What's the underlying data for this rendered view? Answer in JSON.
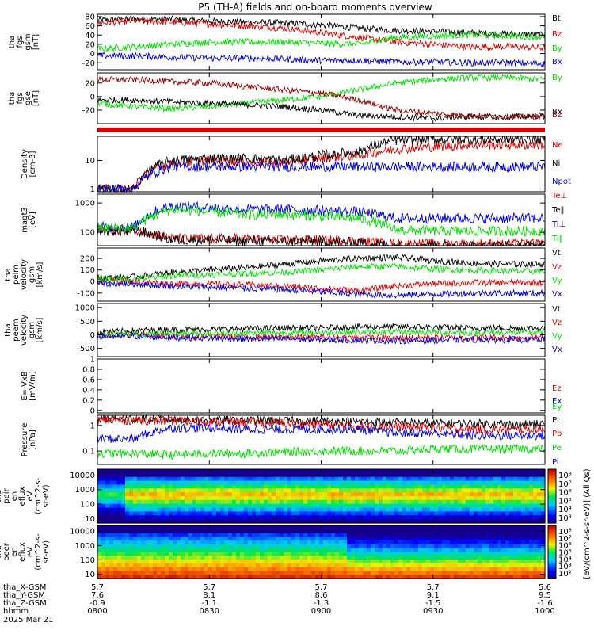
{
  "chart_data": {
    "type": "line",
    "title": "P5 (TH-A) fields and on-board moments overview",
    "date": "2025 Mar 21",
    "x_axis": {
      "tick_labels": [
        "0800",
        "0830",
        "0900",
        "0930",
        "1000"
      ],
      "range_minutes": [
        0,
        120
      ],
      "ephemeris_rows": [
        {
          "label": "tha_X-GSM",
          "values": [
            "5.7",
            "5.7",
            "5.7",
            "5.7",
            "5.6"
          ]
        },
        {
          "label": "tha_Y-GSM",
          "values": [
            "7.6",
            "8.1",
            "8.6",
            "9.1",
            "9.5"
          ]
        },
        {
          "label": "tha_Z-GSM",
          "values": [
            "-0.9",
            "-1.1",
            "-1.3",
            "-1.5",
            "-1.6"
          ]
        },
        {
          "label": "hhmm",
          "values": []
        }
      ]
    },
    "panels": [
      {
        "id": "fgs_gsm",
        "ylabel": [
          "tha",
          "fgs",
          "gsm",
          "[nT]"
        ],
        "scale": "linear",
        "ylim": [
          -35,
          85
        ],
        "yticks": [
          80,
          60,
          40,
          20,
          0,
          -20
        ],
        "series": [
          {
            "name": "Bt",
            "color": "#000000",
            "values": [
              72,
              75,
              74,
              70,
              68,
              66,
              62,
              55,
              50,
              48,
              45,
              42,
              40
            ]
          },
          {
            "name": "Bz",
            "color": "#dd0000",
            "values": [
              66,
              70,
              68,
              64,
              60,
              55,
              45,
              35,
              25,
              20,
              14,
              15,
              12
            ]
          },
          {
            "name": "By",
            "color": "#00dd00",
            "values": [
              10,
              15,
              20,
              25,
              25,
              25,
              22,
              20,
              35,
              38,
              40,
              38,
              35
            ]
          },
          {
            "name": "Bx",
            "color": "#0000dd",
            "values": [
              -5,
              -5,
              -8,
              -10,
              -10,
              -12,
              -15,
              -15,
              -18,
              -18,
              -20,
              -20,
              -22
            ]
          }
        ]
      },
      {
        "id": "fgs_gse",
        "ylabel": [
          "tha",
          "fgs",
          "gse",
          "[nT]"
        ],
        "scale": "linear",
        "ylim": [
          -40,
          35
        ],
        "yticks": [
          20,
          0,
          -20
        ],
        "series": [
          {
            "name": "By",
            "color": "#00dd00",
            "values": [
              -10,
              -15,
              -18,
              -15,
              -10,
              -5,
              0,
              10,
              20,
              25,
              28,
              28,
              25
            ]
          },
          {
            "name": "Bx",
            "color": "#000000",
            "values": [
              -5,
              -5,
              -8,
              -10,
              -12,
              -15,
              -20,
              -28,
              -30,
              -32,
              -30,
              -30,
              -28
            ]
          },
          {
            "name": "Bz",
            "color": "#990000",
            "values": [
              25,
              25,
              22,
              20,
              15,
              10,
              5,
              -5,
              -20,
              -25,
              -28,
              -30,
              -30
            ]
          }
        ]
      },
      {
        "id": "density",
        "ylabel": [
          "Density",
          "[cm-3]"
        ],
        "scale": "log",
        "ylim": [
          0.8,
          70
        ],
        "yticks": [
          10,
          1
        ],
        "series": [
          {
            "name": "Ne",
            "color": "#dd0000",
            "values": [
              1,
              1,
              8,
              10,
              9,
              8,
              12,
              15,
              25,
              30,
              35,
              35,
              35
            ]
          },
          {
            "name": "Ni",
            "color": "#000000",
            "values": [
              1,
              1,
              10,
              12,
              12,
              10,
              15,
              20,
              50,
              55,
              55,
              55,
              55
            ]
          },
          {
            "name": "Npot",
            "color": "#0000dd",
            "values": [
              1,
              1,
              6,
              6,
              6,
              6,
              6,
              6,
              6,
              6,
              6,
              6,
              6
            ]
          }
        ]
      },
      {
        "id": "temperature",
        "ylabel": [
          "magt3",
          "[eV]"
        ],
        "scale": "log",
        "ylim": [
          35,
          2000
        ],
        "yticks": [
          1000,
          100
        ],
        "series": [
          {
            "name": "Te⊥",
            "color": "#dd0000",
            "values": [
              120,
              120,
              60,
              60,
              60,
              55,
              55,
              50,
              40,
              40,
              40,
              40,
              40
            ]
          },
          {
            "name": "Te‖",
            "color": "#000000",
            "values": [
              110,
              110,
              55,
              55,
              50,
              50,
              48,
              45,
              35,
              35,
              35,
              35,
              35
            ]
          },
          {
            "name": "Ti⊥",
            "color": "#0000dd",
            "values": [
              150,
              150,
              800,
              700,
              600,
              600,
              550,
              500,
              300,
              300,
              300,
              300,
              300
            ]
          },
          {
            "name": "Ti‖",
            "color": "#00dd00",
            "values": [
              140,
              140,
              600,
              500,
              400,
              400,
              350,
              300,
              120,
              110,
              110,
              110,
              110
            ]
          }
        ]
      },
      {
        "id": "peim_velocity",
        "ylabel": [
          "tha",
          "peim",
          "velocity",
          "gsm",
          "[km/s]"
        ],
        "scale": "linear",
        "ylim": [
          -170,
          290
        ],
        "yticks": [
          200,
          100,
          0,
          -100
        ],
        "series": [
          {
            "name": "Vt",
            "color": "#000000",
            "values": [
              30,
              40,
              80,
              100,
              120,
              150,
              180,
              200,
              210,
              180,
              160,
              150,
              150
            ]
          },
          {
            "name": "Vz",
            "color": "#dd0000",
            "values": [
              10,
              0,
              -20,
              -20,
              -30,
              -40,
              -60,
              -80,
              -40,
              -20,
              -10,
              -10,
              -10
            ]
          },
          {
            "name": "Vy",
            "color": "#00dd00",
            "values": [
              20,
              20,
              50,
              60,
              70,
              80,
              100,
              130,
              130,
              110,
              100,
              90,
              90
            ]
          },
          {
            "name": "Vx",
            "color": "#0000dd",
            "values": [
              -20,
              -20,
              -40,
              -50,
              -60,
              -70,
              -90,
              -110,
              -120,
              -110,
              -100,
              -100,
              -100
            ]
          }
        ]
      },
      {
        "id": "peem_velocity",
        "ylabel": [
          "tha",
          "peem",
          "velocity",
          "gsm",
          "[km/s]"
        ],
        "scale": "linear",
        "ylim": [
          -800,
          1150
        ],
        "yticks": [
          1000,
          500,
          0,
          -500
        ],
        "series": [
          {
            "name": "Vt",
            "color": "#000000",
            "values": [
              100,
              150,
              200,
              200,
              220,
              250,
              250,
              300,
              300,
              280,
              250,
              250,
              250
            ]
          },
          {
            "name": "Vz",
            "color": "#dd0000",
            "values": [
              0,
              0,
              -50,
              -50,
              -80,
              -80,
              -100,
              -100,
              -120,
              -100,
              -100,
              -100,
              -100
            ]
          },
          {
            "name": "Vy",
            "color": "#00dd00",
            "values": [
              0,
              20,
              50,
              50,
              60,
              70,
              80,
              100,
              100,
              90,
              80,
              80,
              80
            ]
          },
          {
            "name": "Vx",
            "color": "#0000dd",
            "values": [
              -50,
              -50,
              -100,
              -120,
              -150,
              -150,
              -180,
              -200,
              -220,
              -200,
              -180,
              -180,
              -180
            ]
          }
        ]
      },
      {
        "id": "efield",
        "ylabel": [
          "E=-VxB",
          "[mV/m]"
        ],
        "scale": "linear",
        "ylim": [
          -0.05,
          1.0
        ],
        "yticks": [
          1.0,
          0.8,
          0.6,
          0.4,
          0.2,
          0.0
        ],
        "series": [
          {
            "name": "Ez",
            "color": "#dd0000",
            "values": []
          },
          {
            "name": "Ey",
            "color": "#00dd00",
            "values": []
          },
          {
            "name": "Ex",
            "color": "#0000dd",
            "values": []
          }
        ]
      },
      {
        "id": "pressure",
        "ylabel": [
          "Pressure",
          "[nPa]"
        ],
        "scale": "log",
        "ylim": [
          0.03,
          2.5
        ],
        "yticks": [
          1.0,
          0.1
        ],
        "series": [
          {
            "name": "Pt",
            "color": "#000000",
            "values": [
              1.8,
              1.8,
              1.7,
              1.6,
              1.6,
              1.5,
              1.5,
              1.4,
              1.3,
              1.2,
              1.2,
              1.1,
              1.1
            ]
          },
          {
            "name": "Pb",
            "color": "#dd0000",
            "values": [
              1.6,
              1.6,
              1.5,
              1.4,
              1.3,
              1.2,
              1.1,
              1.0,
              0.9,
              0.8,
              0.7,
              0.7,
              0.7
            ]
          },
          {
            "name": "Pe",
            "color": "#00dd00",
            "values": [
              0.08,
              0.08,
              0.07,
              0.08,
              0.08,
              0.09,
              0.1,
              0.1,
              0.1,
              0.12,
              0.12,
              0.12,
              0.12
            ]
          },
          {
            "name": "Pi",
            "color": "#0000dd",
            "values": [
              0.3,
              0.3,
              0.8,
              0.8,
              0.7,
              0.7,
              0.7,
              0.7,
              0.5,
              0.5,
              0.4,
              0.4,
              0.4
            ]
          }
        ]
      },
      {
        "id": "peir_spectrogram",
        "type": "heatmap",
        "ylabel": [
          "tha",
          "peir",
          "en",
          "eflux",
          "eV",
          "(cm^2-s-",
          "sr-eV)"
        ],
        "scale": "log",
        "ylim": [
          5,
          25000
        ],
        "yticks": [
          10000,
          1000,
          100,
          10
        ]
      },
      {
        "id": "peer_spectrogram",
        "type": "heatmap",
        "ylabel": [
          "tha",
          "peer",
          "en",
          "eflux",
          "eV",
          "(cm^2-s-",
          "sr-eV)"
        ],
        "scale": "log",
        "ylim": [
          5,
          25000
        ],
        "yticks": [
          10000,
          1000,
          100,
          10
        ]
      }
    ],
    "colorbars": [
      {
        "tick_labels": [
          "10⁸",
          "10⁷",
          "10⁶",
          "10⁵",
          "10⁴",
          "10³"
        ]
      },
      {
        "tick_labels": [
          "10⁸",
          "10⁷",
          "10⁶",
          "10⁵",
          "10⁴",
          "10³",
          "10²"
        ]
      }
    ],
    "colorbar_label": "[eV/(cm^2-s-sr-eV)] (All Qs)"
  }
}
